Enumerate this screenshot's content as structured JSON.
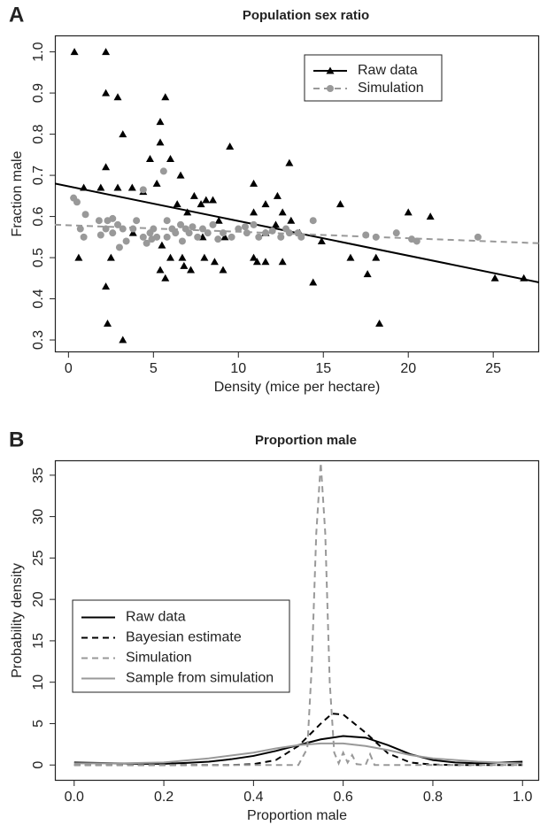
{
  "chart_data": [
    {
      "type": "scatter",
      "panel": "A",
      "title": "Population sex ratio",
      "x_label": "Density (mice per hectare)",
      "y_label": "Fraction male",
      "xlim": [
        -0.8,
        27.7
      ],
      "ylim": [
        0.27,
        1.04
      ],
      "xticks": [
        0,
        5,
        10,
        15,
        20,
        25
      ],
      "yticks": [
        0.3,
        0.4,
        0.5,
        0.6,
        0.7,
        0.8,
        0.9,
        {
          "value": 1,
          "label": "1.0"
        }
      ],
      "legend": "top-right",
      "series": [
        {
          "name": "Raw data",
          "color": "#000000",
          "marker": "triangle",
          "dash": "solid",
          "x": [
            0.35,
            2.2,
            2.2,
            2.9,
            3.2,
            5.7,
            5.4,
            5.4,
            4.8,
            6.0,
            9.5,
            13,
            2.2,
            0.9,
            1.9,
            2.9,
            3.75,
            4.4,
            5.2,
            6.6,
            7.4,
            7.8,
            8.1,
            8.5,
            7.0,
            6.4,
            10.9,
            10.9,
            11.6,
            12.3,
            12.6,
            13.1,
            16,
            20,
            21.3,
            25.1,
            26.8,
            18.1,
            16.6,
            17.6,
            18.3,
            14.4,
            14.9,
            13.6,
            0.6,
            2.5,
            2.2,
            2.3,
            3.2,
            3.8,
            5.5,
            5.4,
            5.7,
            6.0,
            6.7,
            6.8,
            7.2,
            8.0,
            7.9,
            8.6,
            8.85,
            9.2,
            10.9,
            11.1,
            11.6,
            12.6,
            9.1,
            11.6,
            12.2
          ],
          "values": [
            1.0,
            1.0,
            0.9,
            0.89,
            0.8,
            0.89,
            0.83,
            0.78,
            0.74,
            0.74,
            0.77,
            0.73,
            0.72,
            0.67,
            0.67,
            0.67,
            0.67,
            0.66,
            0.68,
            0.7,
            0.65,
            0.63,
            0.64,
            0.64,
            0.61,
            0.63,
            0.68,
            0.61,
            0.63,
            0.65,
            0.61,
            0.59,
            0.63,
            0.61,
            0.6,
            0.45,
            0.45,
            0.5,
            0.5,
            0.46,
            0.34,
            0.44,
            0.54,
            0.56,
            0.5,
            0.5,
            0.43,
            0.34,
            0.3,
            0.56,
            0.53,
            0.47,
            0.45,
            0.5,
            0.5,
            0.48,
            0.47,
            0.5,
            0.55,
            0.49,
            0.59,
            0.55,
            0.5,
            0.49,
            0.49,
            0.49,
            0.47,
            0.56,
            0.58
          ],
          "fit": {
            "x": [
              -0.8,
              27.7
            ],
            "y": [
              0.68,
              0.44
            ]
          }
        },
        {
          "name": "Simulation",
          "color": "#999999",
          "marker": "circle",
          "dash": "dashed",
          "x": [
            0.3,
            0.5,
            0.7,
            1.0,
            0.9,
            1.8,
            2.2,
            2.3,
            2.6,
            2.9,
            3.2,
            3.4,
            3.8,
            4.0,
            4.4,
            4.4,
            4.8,
            5.0,
            5.2,
            5.6,
            5.8,
            5.8,
            6.1,
            6.3,
            6.6,
            6.9,
            7.1,
            7.3,
            7.6,
            7.9,
            8.2,
            8.5,
            9.1,
            9.6,
            10.0,
            10.5,
            10.9,
            11.2,
            11.6,
            12.0,
            12.5,
            13.0,
            13.7,
            14.4,
            17.5,
            18.1,
            19.3,
            20.2,
            20.5,
            24.1,
            3.0,
            2.6,
            4.6,
            1.9,
            8.8,
            10.4,
            13.5,
            12.8,
            4.9,
            6.7
          ],
          "values": [
            0.645,
            0.635,
            0.57,
            0.605,
            0.55,
            0.59,
            0.57,
            0.59,
            0.56,
            0.58,
            0.57,
            0.54,
            0.57,
            0.59,
            0.55,
            0.665,
            0.56,
            0.57,
            0.55,
            0.71,
            0.59,
            0.55,
            0.57,
            0.56,
            0.58,
            0.57,
            0.56,
            0.575,
            0.55,
            0.57,
            0.56,
            0.58,
            0.56,
            0.55,
            0.57,
            0.56,
            0.58,
            0.55,
            0.56,
            0.565,
            0.55,
            0.56,
            0.55,
            0.59,
            0.555,
            0.55,
            0.56,
            0.545,
            0.54,
            0.55,
            0.525,
            0.595,
            0.535,
            0.555,
            0.545,
            0.575,
            0.56,
            0.57,
            0.545,
            0.54
          ],
          "fit": {
            "x": [
              -0.8,
              27.7
            ],
            "y": [
              0.58,
              0.535
            ]
          }
        }
      ]
    },
    {
      "type": "line",
      "panel": "B",
      "title": "Proportion male",
      "x_label": "Proportion male",
      "y_label": "Probability density",
      "xlim": [
        -0.043,
        1.037
      ],
      "ylim": [
        -1.9,
        36.8
      ],
      "xticks": [
        {
          "value": 0,
          "label": "0.0"
        },
        0.2,
        0.4,
        0.6,
        0.8,
        {
          "value": 1,
          "label": "1.0"
        }
      ],
      "yticks": [
        0,
        5,
        10,
        15,
        20,
        25,
        30,
        35
      ],
      "legend": "center-left",
      "series": [
        {
          "name": "Raw data",
          "color": "#000000",
          "dash": "solid",
          "x": [
            0,
            0.05,
            0.1,
            0.15,
            0.2,
            0.25,
            0.3,
            0.35,
            0.4,
            0.45,
            0.5,
            0.55,
            0.6,
            0.65,
            0.7,
            0.75,
            0.8,
            0.85,
            0.9,
            0.95,
            1.0
          ],
          "values": [
            0.3,
            0.25,
            0.2,
            0.15,
            0.15,
            0.25,
            0.4,
            0.7,
            1.1,
            1.7,
            2.4,
            3.1,
            3.5,
            3.3,
            2.4,
            1.3,
            0.6,
            0.3,
            0.2,
            0.3,
            0.4
          ]
        },
        {
          "name": "Bayesian estimate",
          "color": "#000000",
          "dash": "dashed",
          "x": [
            0,
            0.1,
            0.2,
            0.3,
            0.35,
            0.4,
            0.45,
            0.5,
            0.55,
            0.575,
            0.6,
            0.65,
            0.7,
            0.75,
            0.8,
            0.85,
            0.9,
            1.0
          ],
          "values": [
            0,
            0,
            0,
            0,
            0,
            0.1,
            0.6,
            2.3,
            5.0,
            6.2,
            6.1,
            3.9,
            1.4,
            0.3,
            0.05,
            0,
            0,
            0
          ]
        },
        {
          "name": "Simulation",
          "color": "#999999",
          "dash": "dashed",
          "x": [
            0,
            0.25,
            0.5,
            0.52,
            0.53,
            0.54,
            0.55,
            0.56,
            0.57,
            0.58,
            0.59,
            0.6,
            0.61,
            0.62,
            0.63,
            0.65,
            0.66,
            0.67,
            0.8,
            1.0
          ],
          "values": [
            0,
            0,
            0,
            2,
            12,
            28,
            36.5,
            28,
            10,
            1.5,
            0.2,
            1.5,
            0.3,
            1.2,
            0.1,
            0,
            1.3,
            0,
            0,
            0
          ]
        },
        {
          "name": "Sample from simulation",
          "color": "#999999",
          "dash": "solid",
          "x": [
            0,
            0.1,
            0.2,
            0.3,
            0.4,
            0.45,
            0.5,
            0.55,
            0.6,
            0.65,
            0.7,
            0.75,
            0.8,
            0.9,
            1.0
          ],
          "values": [
            0.2,
            0.2,
            0.3,
            0.8,
            1.5,
            2.0,
            2.4,
            2.6,
            2.6,
            2.3,
            1.8,
            1.2,
            0.8,
            0.4,
            0.2
          ]
        }
      ]
    }
  ]
}
